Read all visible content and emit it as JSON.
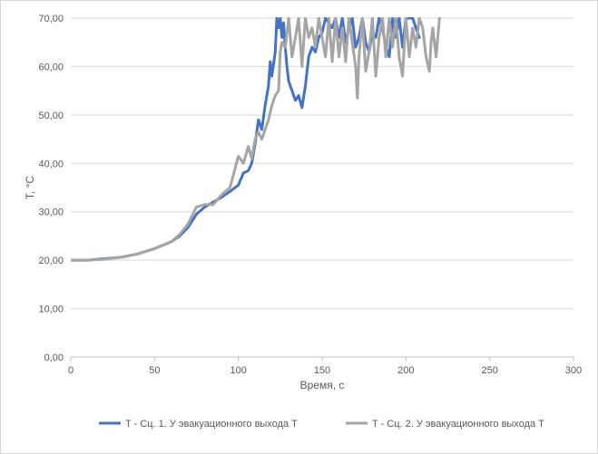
{
  "chart_data": {
    "type": "line",
    "title": "",
    "xlabel": "Время, с",
    "ylabel": "T, °C",
    "xlim": [
      0,
      300
    ],
    "ylim": [
      0,
      70
    ],
    "xticks": [
      0,
      50,
      100,
      150,
      200,
      250,
      300
    ],
    "yticks": [
      0,
      10,
      20,
      30,
      40,
      50,
      60,
      70
    ],
    "xtick_labels": [
      "0",
      "50",
      "100",
      "150",
      "200",
      "250",
      "300"
    ],
    "ytick_labels": [
      "0,00",
      "10,00",
      "20,00",
      "30,00",
      "40,00",
      "50,00",
      "60,00",
      "70,00"
    ],
    "grid": "horizontal",
    "legend_position": "bottom",
    "series": [
      {
        "name": "T - Сц. 1. У эвакуационного выхода Т",
        "color": "#4472c4",
        "x": [
          0,
          10,
          20,
          30,
          40,
          50,
          60,
          65,
          70,
          75,
          80,
          85,
          90,
          95,
          100,
          103,
          106,
          108,
          110,
          112,
          114,
          116,
          118,
          119,
          120,
          122,
          123,
          124,
          125,
          126,
          127,
          128,
          129,
          130,
          132,
          134,
          136,
          138,
          140,
          142,
          144,
          146,
          148,
          150,
          152,
          154,
          156,
          158,
          160,
          162,
          164,
          166,
          168,
          170,
          172,
          174,
          176,
          178,
          180,
          182,
          184,
          186,
          188,
          190,
          192,
          194,
          196,
          198,
          200,
          202,
          204,
          206,
          208
        ],
        "y": [
          20,
          20,
          20.3,
          20.6,
          21.3,
          22.4,
          23.8,
          25.0,
          26.8,
          29.5,
          31.0,
          32.0,
          33.0,
          34.2,
          35.5,
          38.0,
          38.5,
          40.0,
          44.0,
          49.0,
          47.0,
          52.0,
          56.0,
          61.0,
          58.0,
          63.0,
          70.0,
          68.0,
          70.0,
          66.0,
          69.0,
          64.0,
          60.0,
          57.0,
          55.0,
          53.0,
          54.0,
          51.5,
          56.0,
          62.0,
          64.0,
          63.0,
          66.0,
          67.0,
          70.0,
          69.0,
          68.0,
          70.0,
          66.0,
          70.0,
          65.0,
          68.0,
          70.0,
          64.0,
          66.0,
          70.0,
          65.0,
          63.0,
          67.0,
          66.0,
          70.0,
          68.0,
          64.0,
          62.0,
          70.0,
          66.0,
          70.0,
          64.0,
          70.0,
          70.0,
          70.0,
          68.0,
          66.0
        ]
      },
      {
        "name": "T - Сц. 2. У эвакуационного выхода Т",
        "color": "#a5a5a5",
        "x": [
          0,
          10,
          20,
          30,
          40,
          50,
          60,
          65,
          70,
          75,
          80,
          85,
          90,
          95,
          100,
          103,
          106,
          108,
          110,
          112,
          114,
          116,
          118,
          120,
          122,
          124,
          125,
          126,
          128,
          130,
          132,
          134,
          136,
          138,
          140,
          142,
          144,
          146,
          148,
          150,
          152,
          154,
          156,
          158,
          160,
          162,
          164,
          166,
          168,
          170,
          171,
          172,
          174,
          176,
          178,
          180,
          182,
          184,
          186,
          188,
          190,
          192,
          194,
          196,
          198,
          200,
          202,
          204,
          206,
          208,
          210,
          212,
          214,
          215,
          216,
          218,
          220
        ],
        "y": [
          20,
          20,
          20.2,
          20.6,
          21.3,
          22.4,
          23.8,
          25.3,
          27.5,
          31.0,
          31.5,
          31.5,
          33.5,
          35.0,
          41.5,
          40.0,
          43.5,
          41.0,
          45.0,
          46.5,
          45.0,
          47.0,
          49.0,
          52.0,
          54.0,
          55.0,
          63.0,
          65.0,
          64.0,
          70.0,
          62.0,
          66.0,
          70.0,
          60.0,
          70.0,
          66.0,
          68.0,
          64.0,
          70.0,
          66.0,
          62.0,
          70.0,
          61.0,
          70.0,
          62.0,
          68.0,
          61.0,
          70.0,
          65.0,
          60.0,
          53.5,
          62.0,
          70.0,
          59.0,
          63.0,
          70.0,
          58.0,
          66.0,
          70.0,
          62.0,
          70.0,
          64.0,
          70.0,
          62.0,
          58.0,
          70.0,
          62.0,
          68.0,
          64.0,
          70.0,
          68.0,
          62.0,
          59.0,
          65.0,
          68.0,
          62.0,
          70.0
        ]
      }
    ]
  }
}
